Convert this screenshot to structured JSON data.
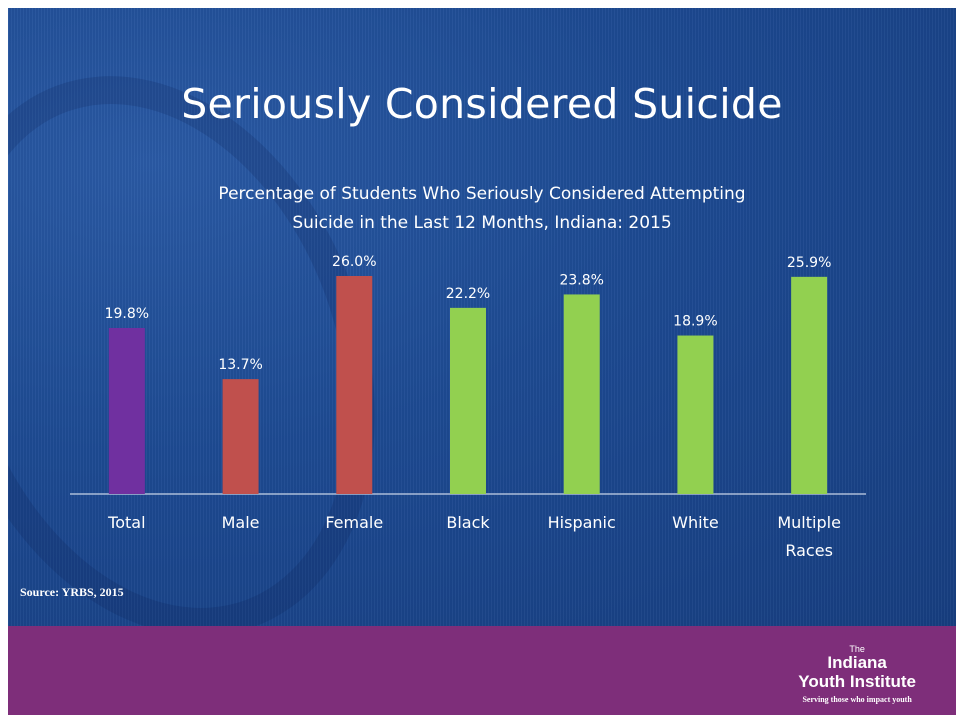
{
  "slide": {
    "title": "Seriously Considered Suicide",
    "source": "Source: YRBS, 2015"
  },
  "logo": {
    "the": "The",
    "line1": "Indiana",
    "line2": "Youth Institute",
    "tagline": "Serving those who impact youth"
  },
  "chart_data": {
    "type": "bar",
    "title": "Percentage of Students Who Seriously Considered Attempting",
    "title_line2": "Suicide in the Last 12 Months, Indiana: 2015",
    "categories": [
      [
        "Total"
      ],
      [
        "Male"
      ],
      [
        "Female"
      ],
      [
        "Black"
      ],
      [
        "Hispanic"
      ],
      [
        "White"
      ],
      [
        "Multiple",
        "Races"
      ]
    ],
    "values": [
      19.8,
      13.7,
      26.0,
      22.2,
      23.8,
      18.9,
      25.9
    ],
    "value_labels": [
      "19.8%",
      "13.7%",
      "26.0%",
      "22.2%",
      "23.8%",
      "18.9%",
      "25.9%"
    ],
    "colors": [
      "#7030a0",
      "#c0504d",
      "#c0504d",
      "#92d050",
      "#92d050",
      "#92d050",
      "#92d050"
    ],
    "ylim": [
      0,
      26.0
    ],
    "grid": false,
    "legend": "none",
    "xlabel": "",
    "ylabel": ""
  }
}
